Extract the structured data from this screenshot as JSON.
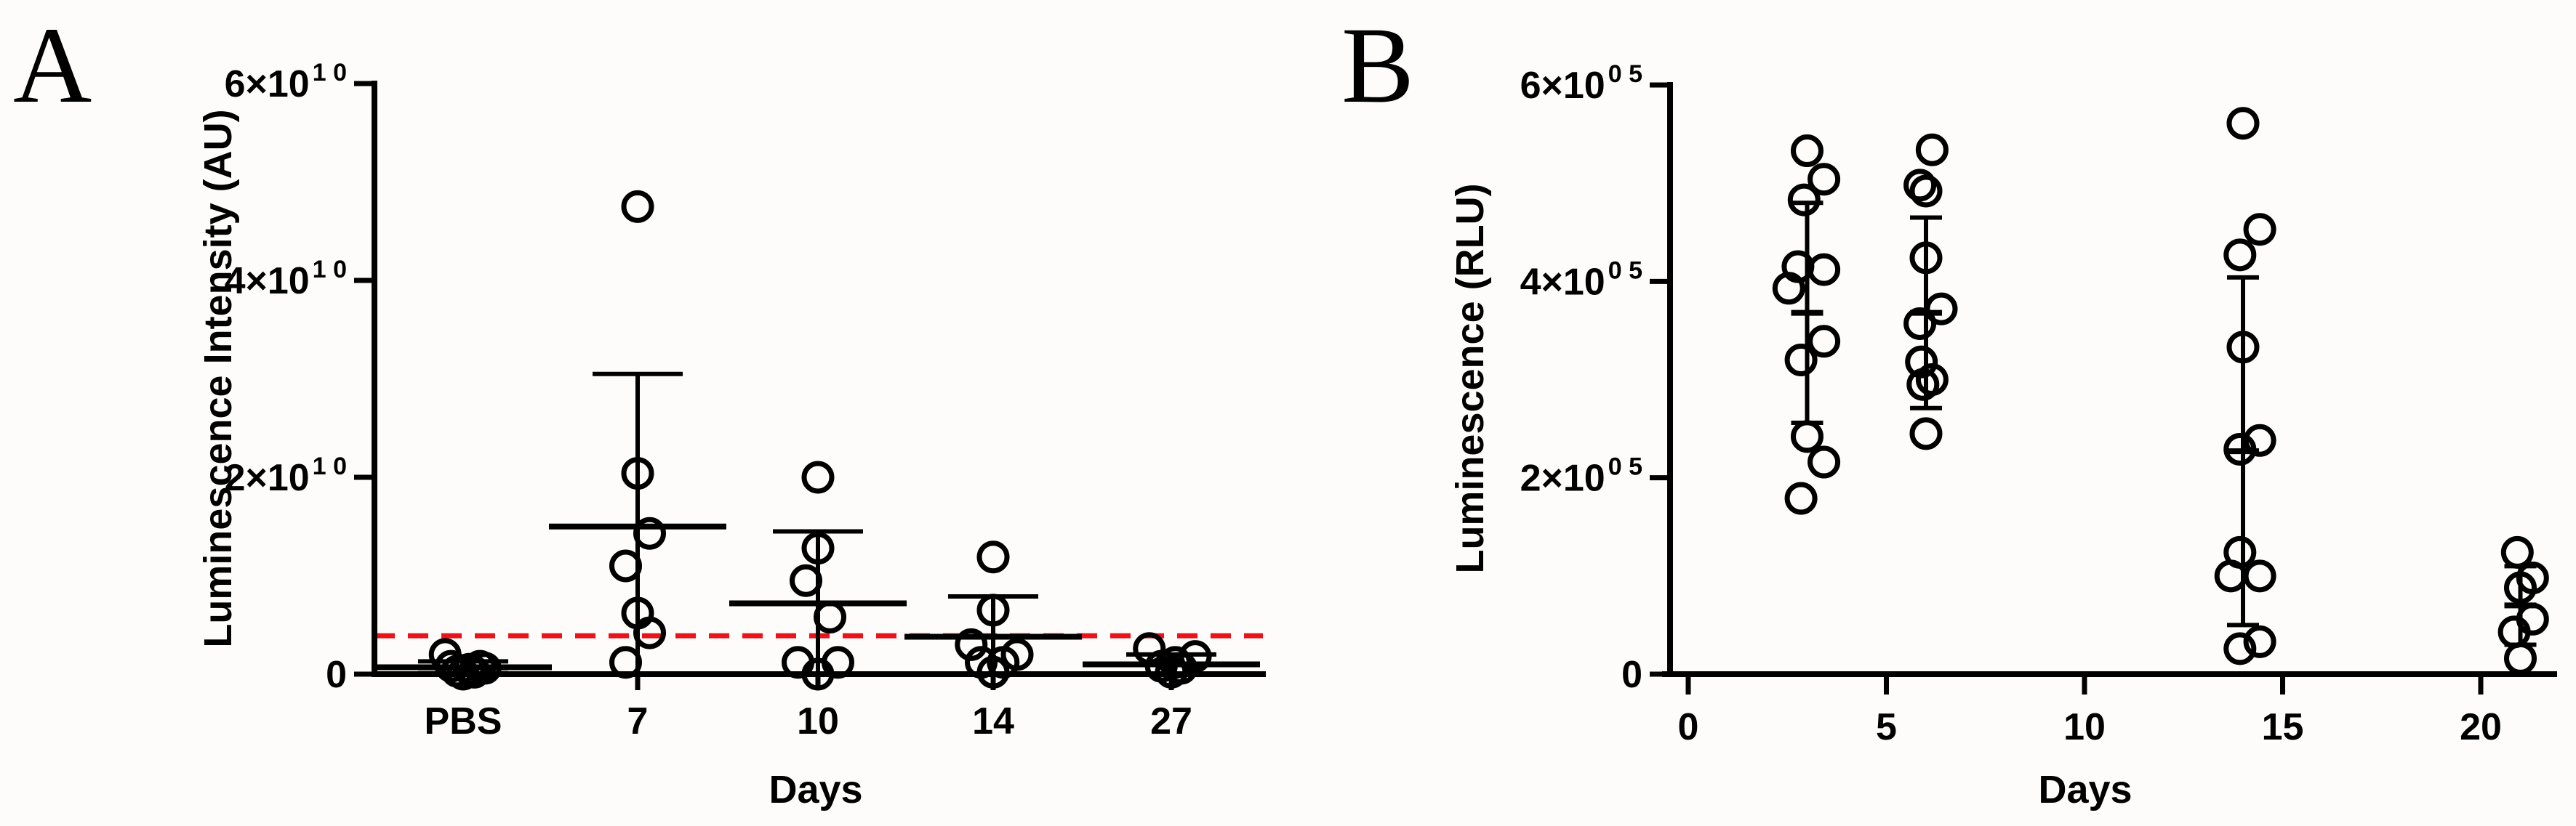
{
  "figure": {
    "panels": [
      {
        "letter": "A"
      },
      {
        "letter": "B"
      }
    ]
  },
  "colors": {
    "axis": "#000000",
    "threshold_line": "#e8141b",
    "marker_edge": "#000000",
    "background": "#fdfcfa"
  },
  "chart_data": [
    {
      "panel": "A",
      "type": "scatter",
      "subtype": "categorical dot plot with mean ± SD",
      "title": "",
      "xlabel": "Days",
      "ylabel": "Luminescence Intensity (AU)",
      "categories": [
        "PBS",
        "7",
        "10",
        "14",
        "27"
      ],
      "ylim": [
        0,
        60000000000.0
      ],
      "yticks": [
        0,
        20000000000.0,
        40000000000.0,
        60000000000.0
      ],
      "ytick_labels": [
        {
          "base": "0",
          "exp": ""
        },
        {
          "base": "2×10",
          "exp": "1 0"
        },
        {
          "base": "4×10",
          "exp": "1 0"
        },
        {
          "base": "6×10",
          "exp": "1 0"
        }
      ],
      "grid": false,
      "threshold": {
        "value": 3900000000.0,
        "style": "dashed",
        "color": "#e8141b"
      },
      "series": [
        {
          "name": "PBS",
          "mean": 700000000.0,
          "sd": 600000000.0,
          "points": [
            {
              "dx": -0.45,
              "y": 2000000000.0
            },
            {
              "dx": -0.3,
              "y": 800000000.0
            },
            {
              "dx": -0.15,
              "y": 300000000.0
            },
            {
              "dx": 0.0,
              "y": 0.0
            },
            {
              "dx": 0.15,
              "y": 500000000.0
            },
            {
              "dx": 0.28,
              "y": 200000000.0
            },
            {
              "dx": 0.42,
              "y": 800000000.0
            },
            {
              "dx": 0.55,
              "y": 600000000.0
            }
          ]
        },
        {
          "name": "7",
          "mean": 15000000000.0,
          "sd": 15500000000.0,
          "points": [
            {
              "dx": 0.0,
              "y": 47500000000.0
            },
            {
              "dx": 0.0,
              "y": 20400000000.0
            },
            {
              "dx": 0.3,
              "y": 14300000000.0
            },
            {
              "dx": -0.3,
              "y": 11000000000.0
            },
            {
              "dx": 0.0,
              "y": 6200000000.0
            },
            {
              "dx": 0.3,
              "y": 4200000000.0
            },
            {
              "dx": -0.3,
              "y": 1200000000.0
            }
          ]
        },
        {
          "name": "10",
          "mean": 7200000000.0,
          "sd": 7300000000.0,
          "points": [
            {
              "dx": 0.0,
              "y": 20000000000.0
            },
            {
              "dx": 0.0,
              "y": 12800000000.0
            },
            {
              "dx": -0.3,
              "y": 9500000000.0
            },
            {
              "dx": 0.3,
              "y": 5800000000.0
            },
            {
              "dx": -0.5,
              "y": 1200000000.0
            },
            {
              "dx": 0.0,
              "y": 0.0
            },
            {
              "dx": 0.5,
              "y": 1200000000.0
            }
          ]
        },
        {
          "name": "14",
          "mean": 3800000000.0,
          "sd": 4100000000.0,
          "points": [
            {
              "dx": 0.0,
              "y": 11900000000.0
            },
            {
              "dx": 0.0,
              "y": 6500000000.0
            },
            {
              "dx": -0.55,
              "y": 3000000000.0
            },
            {
              "dx": 0.6,
              "y": 2000000000.0
            },
            {
              "dx": -0.3,
              "y": 1200000000.0
            },
            {
              "dx": 0.25,
              "y": 1200000000.0
            },
            {
              "dx": 0.0,
              "y": 200000000.0
            }
          ]
        },
        {
          "name": "27",
          "mean": 1000000000.0,
          "sd": 1000000000.0,
          "points": [
            {
              "dx": -0.55,
              "y": 2600000000.0
            },
            {
              "dx": -0.25,
              "y": 800000000.0
            },
            {
              "dx": 0.0,
              "y": 200000000.0
            },
            {
              "dx": 0.25,
              "y": 600000000.0
            },
            {
              "dx": 0.6,
              "y": 1800000000.0
            },
            {
              "dx": 0.1,
              "y": 1200000000.0
            }
          ]
        }
      ]
    },
    {
      "panel": "B",
      "type": "scatter",
      "subtype": "numeric-x dot plot with mean ± SD",
      "title": "",
      "xlabel": "Days",
      "ylabel": "Luminescence (RLU)",
      "xlim": [
        -0.5,
        22
      ],
      "xticks": [
        0,
        5,
        10,
        15,
        20
      ],
      "ylim": [
        0,
        600000.0
      ],
      "yticks": [
        0,
        200000.0,
        400000.0,
        600000.0
      ],
      "ytick_labels": [
        {
          "base": "0",
          "exp": ""
        },
        {
          "base": "2×10",
          "exp": "0 5"
        },
        {
          "base": "4×10",
          "exp": "0 5"
        },
        {
          "base": "6×10",
          "exp": "0 5"
        }
      ],
      "grid": false,
      "series": [
        {
          "x": 3,
          "mean": 368000.0,
          "sd": 112000.0,
          "points": [
            {
              "dx": 0.0,
              "y": 533000.0
            },
            {
              "dx": 0.55,
              "y": 504000.0
            },
            {
              "dx": -0.1,
              "y": 483000.0
            },
            {
              "dx": -0.3,
              "y": 415000.0
            },
            {
              "dx": 0.55,
              "y": 412000.0
            },
            {
              "dx": -0.6,
              "y": 393000.0
            },
            {
              "dx": 0.55,
              "y": 339000.0
            },
            {
              "dx": -0.2,
              "y": 320000.0
            },
            {
              "dx": 0.0,
              "y": 242000.0
            },
            {
              "dx": 0.55,
              "y": 216000.0
            },
            {
              "dx": -0.2,
              "y": 179000.0
            }
          ]
        },
        {
          "x": 6,
          "mean": 368000.0,
          "sd": 97000.0,
          "points": [
            {
              "dx": 0.2,
              "y": 534000.0
            },
            {
              "dx": -0.2,
              "y": 498000.0
            },
            {
              "dx": 0.0,
              "y": 492000.0
            },
            {
              "dx": 0.0,
              "y": 424000.0
            },
            {
              "dx": 0.5,
              "y": 372000.0
            },
            {
              "dx": -0.2,
              "y": 357000.0
            },
            {
              "dx": -0.15,
              "y": 318000.0
            },
            {
              "dx": 0.2,
              "y": 300000.0
            },
            {
              "dx": -0.1,
              "y": 295000.0
            },
            {
              "dx": 0.0,
              "y": 245000.0
            }
          ]
        },
        {
          "x": 14,
          "mean": 227000.0,
          "sd": 177000.0,
          "points": [
            {
              "dx": 0.0,
              "y": 561000.0
            },
            {
              "dx": 0.55,
              "y": 453000.0
            },
            {
              "dx": -0.1,
              "y": 427000.0
            },
            {
              "dx": 0.0,
              "y": 333000.0
            },
            {
              "dx": 0.55,
              "y": 238000.0
            },
            {
              "dx": -0.1,
              "y": 229000.0
            },
            {
              "dx": -0.1,
              "y": 124000.0
            },
            {
              "dx": -0.4,
              "y": 100000.0
            },
            {
              "dx": 0.55,
              "y": 100000.0
            },
            {
              "dx": 0.55,
              "y": 33000.0
            },
            {
              "dx": -0.1,
              "y": 26000.0
            }
          ]
        },
        {
          "x": 21,
          "mean": 70000.0,
          "sd": 40000.0,
          "points": [
            {
              "dx": -0.1,
              "y": 124000.0
            },
            {
              "dx": 0.4,
              "y": 98000.0
            },
            {
              "dx": 0.0,
              "y": 88000.0
            },
            {
              "dx": 0.4,
              "y": 56000.0
            },
            {
              "dx": -0.2,
              "y": 43000.0
            },
            {
              "dx": 0.0,
              "y": 16000.0
            }
          ]
        }
      ]
    }
  ]
}
